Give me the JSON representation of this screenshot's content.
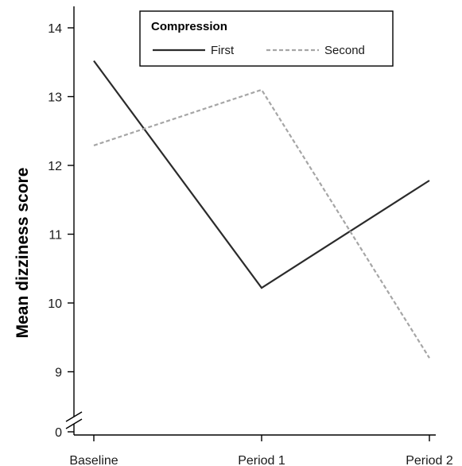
{
  "chart_data": {
    "type": "line",
    "categories": [
      "Baseline",
      "Period 1",
      "Period 2"
    ],
    "series": [
      {
        "name": "First",
        "values": [
          13.52,
          10.22,
          11.78
        ],
        "color": "#2b2b2b",
        "dash": "solid"
      },
      {
        "name": "Second",
        "values": [
          12.29,
          13.1,
          9.2
        ],
        "color": "#a6a6a6",
        "dash": "dashed"
      }
    ],
    "legend": {
      "title": "Compression",
      "position": "top"
    },
    "xlabel": "",
    "ylabel": "Mean dizziness score",
    "y_ticks": [
      14,
      13,
      12,
      11,
      10,
      9
    ],
    "y_zero_label": "0",
    "ylim": [
      9,
      14
    ],
    "y_axis_break": true,
    "grid": false
  }
}
